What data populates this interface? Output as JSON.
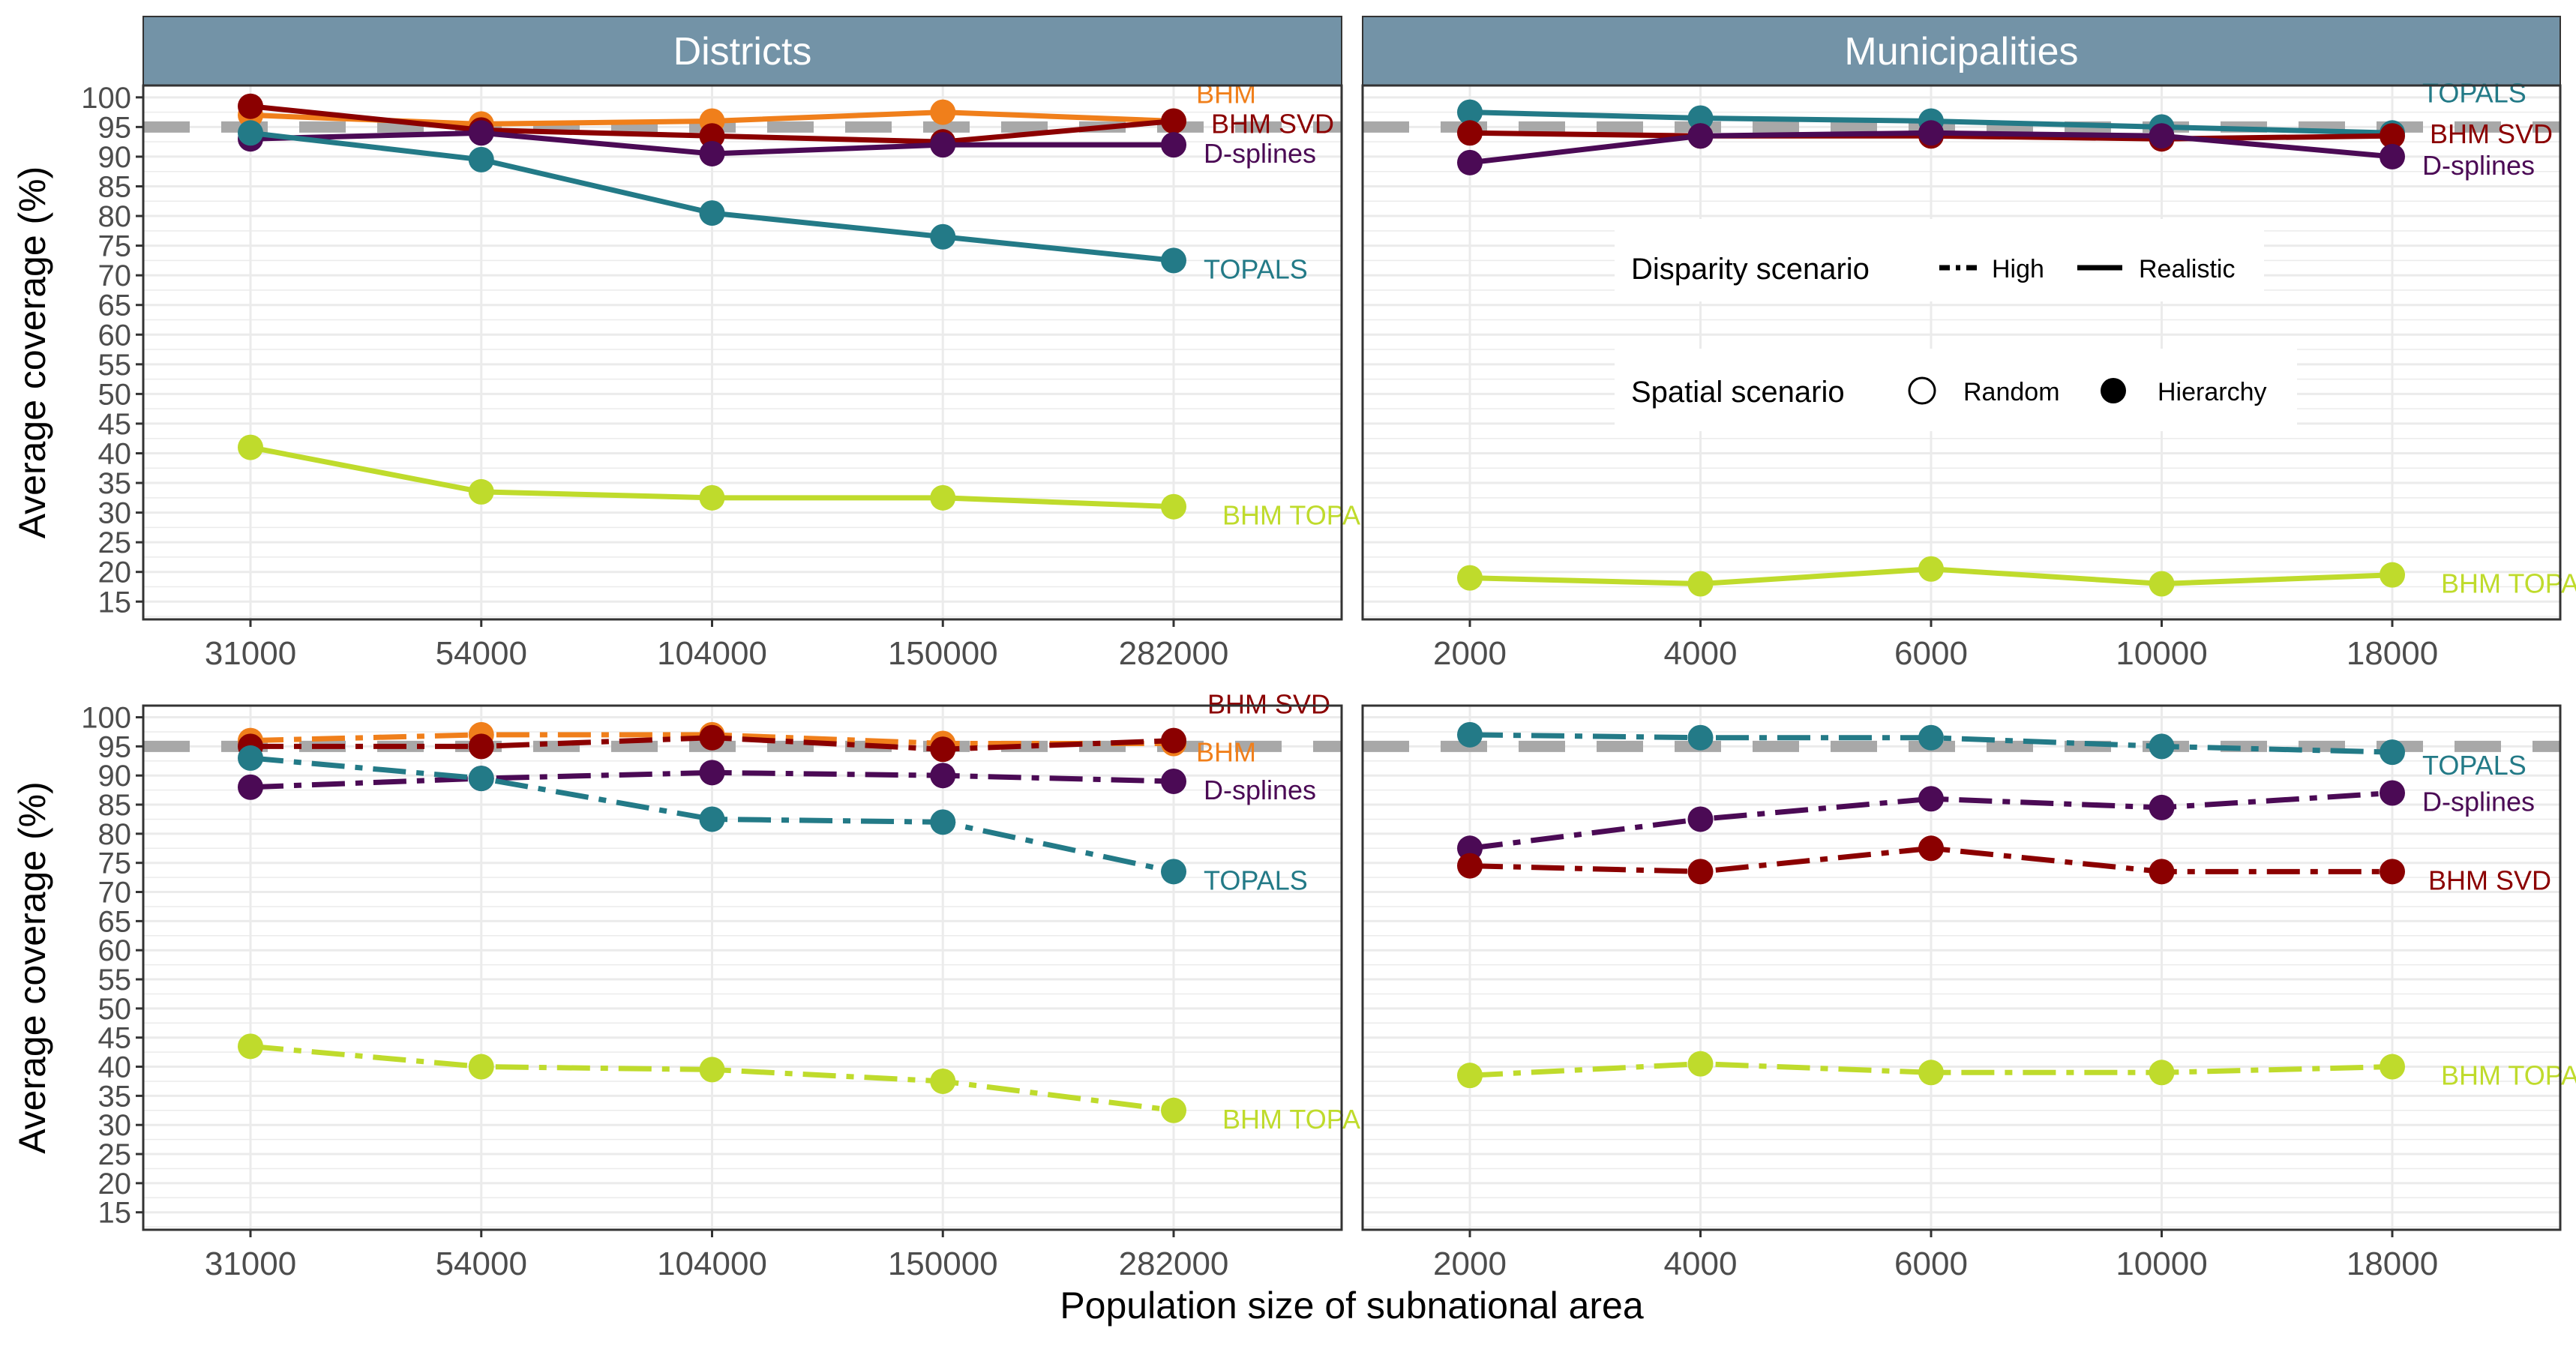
{
  "figure": {
    "ylabel": "Average coverage (%)",
    "xlabel": "Population size of subnational area",
    "facet_labels": [
      "Districts",
      "Municipalities"
    ],
    "y_ticks": [
      15,
      20,
      25,
      30,
      35,
      40,
      45,
      50,
      55,
      60,
      65,
      70,
      75,
      80,
      85,
      90,
      95,
      100
    ],
    "reference_line": 95,
    "colors": {
      "BHM": "#F07F1B",
      "BHM SVD": "#8B0000",
      "D-splines": "#4B0A55",
      "TOPALS": "#237A87",
      "BHM TOPALS": "#BFDB2C",
      "strip": "#7393A7",
      "strip_text": "#ffffff",
      "reference": "#A8A8A8",
      "grid": "#EBEBEB"
    }
  },
  "legend": {
    "disparity_title": "Disparity scenario",
    "disparity_items": [
      "High",
      "Realistic"
    ],
    "spatial_title": "Spatial scenario",
    "spatial_items": [
      "Random",
      "Hierarchy"
    ]
  },
  "chart_data": [
    {
      "type": "line",
      "panel": "Districts",
      "scenario": "Realistic",
      "x": [
        "31000",
        "54000",
        "104000",
        "150000",
        "282000"
      ],
      "ylim": [
        12,
        102
      ],
      "series": [
        {
          "name": "BHM",
          "label": "BHM",
          "values": [
            97,
            95.5,
            96,
            97.5,
            96
          ]
        },
        {
          "name": "BHM SVD",
          "label": "BHM SVD",
          "values": [
            98.5,
            94.5,
            93.5,
            92.5,
            96
          ]
        },
        {
          "name": "D-splines",
          "label": "D-splines",
          "values": [
            93,
            94,
            90.5,
            92,
            92
          ]
        },
        {
          "name": "TOPALS",
          "label": "TOPALS",
          "values": [
            94,
            89.5,
            80.5,
            76.5,
            72.5
          ]
        },
        {
          "name": "BHM TOPALS",
          "label": "BHM TOPAL",
          "values": [
            41,
            33.5,
            32.5,
            32.5,
            31
          ]
        }
      ]
    },
    {
      "type": "line",
      "panel": "Municipalities",
      "scenario": "Realistic",
      "x": [
        "2000",
        "4000",
        "6000",
        "10000",
        "18000"
      ],
      "ylim": [
        12,
        102
      ],
      "series": [
        {
          "name": "TOPALS",
          "label": "TOPALS",
          "values": [
            97.5,
            96.5,
            96,
            95,
            94
          ]
        },
        {
          "name": "BHM SVD",
          "label": "BHM SVD",
          "values": [
            94,
            93.5,
            93.5,
            93,
            93.5
          ]
        },
        {
          "name": "D-splines",
          "label": "D-splines",
          "values": [
            89,
            93.5,
            94,
            93.5,
            90
          ]
        },
        {
          "name": "BHM TOPALS",
          "label": "BHM TOPAL",
          "values": [
            19,
            18,
            20.5,
            18,
            19.5
          ]
        }
      ]
    },
    {
      "type": "line",
      "panel": "Districts",
      "scenario": "High",
      "x": [
        "31000",
        "54000",
        "104000",
        "150000",
        "282000"
      ],
      "ylim": [
        12,
        102
      ],
      "series": [
        {
          "name": "BHM",
          "label": "BHM",
          "values": [
            96,
            97,
            97,
            95.5,
            95.5
          ]
        },
        {
          "name": "BHM SVD",
          "label": "BHM SVD",
          "values": [
            95,
            95,
            96.5,
            94.5,
            96
          ]
        },
        {
          "name": "D-splines",
          "label": "D-splines",
          "values": [
            88,
            89.5,
            90.5,
            90,
            89
          ]
        },
        {
          "name": "TOPALS",
          "label": "TOPALS",
          "values": [
            93,
            89.5,
            82.5,
            82,
            73.5
          ]
        },
        {
          "name": "BHM TOPALS",
          "label": "BHM TOPAL",
          "values": [
            43.5,
            40,
            39.5,
            37.5,
            32.5
          ]
        }
      ]
    },
    {
      "type": "line",
      "panel": "Municipalities",
      "scenario": "High",
      "x": [
        "2000",
        "4000",
        "6000",
        "10000",
        "18000"
      ],
      "ylim": [
        12,
        102
      ],
      "series": [
        {
          "name": "TOPALS",
          "label": "TOPALS",
          "values": [
            97,
            96.5,
            96.5,
            95,
            94
          ]
        },
        {
          "name": "D-splines",
          "label": "D-splines",
          "values": [
            77.5,
            82.5,
            86,
            84.5,
            87
          ]
        },
        {
          "name": "BHM SVD",
          "label": "BHM SVD",
          "values": [
            74.5,
            73.5,
            77.5,
            73.5,
            73.5
          ]
        },
        {
          "name": "BHM TOPALS",
          "label": "BHM TOPAL",
          "values": [
            38.5,
            40.5,
            39,
            39,
            40
          ]
        }
      ]
    }
  ]
}
